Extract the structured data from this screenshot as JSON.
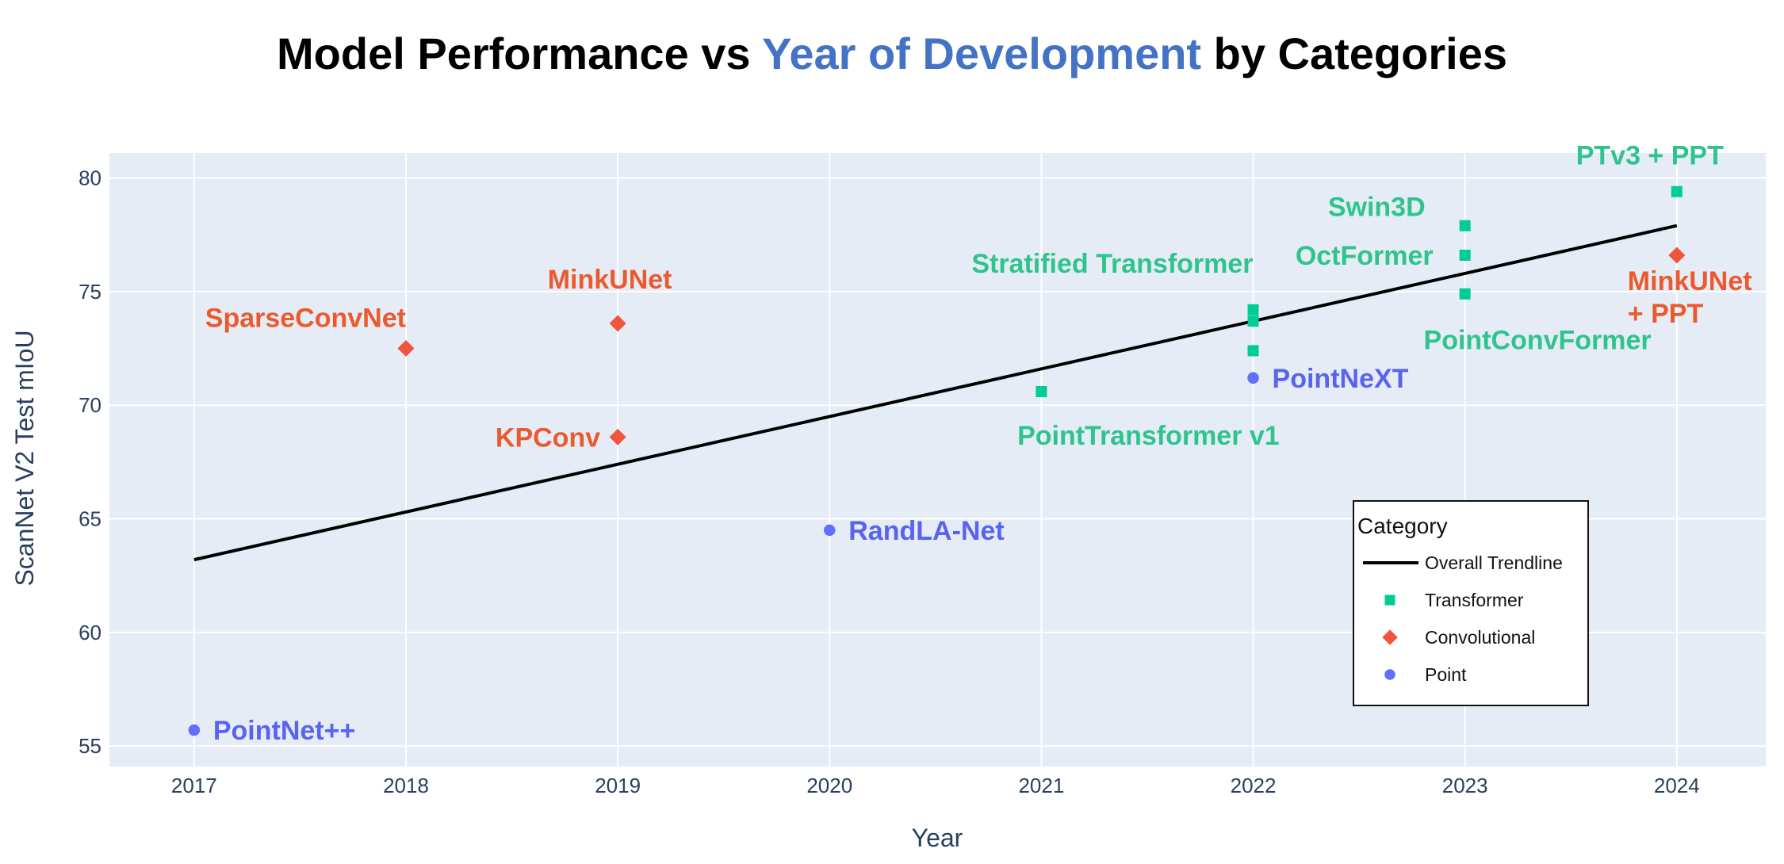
{
  "chart_data": {
    "type": "scatter",
    "title_parts": [
      {
        "text": "Model Performance vs ",
        "color": "#000000"
      },
      {
        "text": "Year of Development",
        "color": "#4472c4"
      },
      {
        "text": " by Categories",
        "color": "#000000"
      }
    ],
    "xlabel": "Year",
    "ylabel": "ScanNet V2 Test mIoU",
    "xlim": [
      2016.6,
      2024.42
    ],
    "ylim": [
      54.1,
      81.1
    ],
    "x_ticks": [
      2017,
      2018,
      2019,
      2020,
      2021,
      2022,
      2023,
      2024
    ],
    "y_ticks": [
      55,
      60,
      65,
      70,
      75,
      80
    ],
    "grid": true,
    "plot_background": "#e5ecf6",
    "legend": {
      "title": "Category",
      "position": "bottom-right",
      "entries": [
        {
          "label": "Overall Trendline",
          "symbol": "line",
          "color": "#000000"
        },
        {
          "label": "Transformer",
          "symbol": "square",
          "color": "#00cc96"
        },
        {
          "label": "Convolutional",
          "symbol": "diamond",
          "color": "#ef553b"
        },
        {
          "label": "Point",
          "symbol": "circle",
          "color": "#636efa"
        }
      ]
    },
    "trendline": {
      "name": "Overall Trendline",
      "x": [
        2017,
        2024
      ],
      "y": [
        63.2,
        77.9
      ],
      "color": "#000000"
    },
    "series": [
      {
        "name": "Transformer",
        "symbol": "square",
        "color": "#00cc96",
        "label_color": "#2fc48d",
        "points": [
          {
            "x": 2021,
            "y": 70.6
          },
          {
            "x": 2022,
            "y": 74.2
          },
          {
            "x": 2022,
            "y": 73.7
          },
          {
            "x": 2022,
            "y": 72.4
          },
          {
            "x": 2023,
            "y": 77.9
          },
          {
            "x": 2023,
            "y": 76.6
          },
          {
            "x": 2023,
            "y": 74.9
          },
          {
            "x": 2024,
            "y": 79.4
          }
        ]
      },
      {
        "name": "Convolutional",
        "symbol": "diamond",
        "color": "#ef553b",
        "label_color": "#ea5a2e",
        "points": [
          {
            "x": 2018,
            "y": 72.5
          },
          {
            "x": 2019,
            "y": 73.6
          },
          {
            "x": 2019,
            "y": 68.6
          },
          {
            "x": 2024,
            "y": 76.6
          }
        ]
      },
      {
        "name": "Point",
        "symbol": "circle",
        "color": "#636efa",
        "label_color": "#5a63f0",
        "points": [
          {
            "x": 2017,
            "y": 55.7
          },
          {
            "x": 2020,
            "y": 64.5
          },
          {
            "x": 2022,
            "y": 71.2
          }
        ]
      }
    ],
    "annotations": [
      {
        "text": "PointNet++",
        "x": 2017,
        "y": 55.7,
        "series": "Point",
        "anchor": "right"
      },
      {
        "text": "RandLA-Net",
        "x": 2020,
        "y": 64.5,
        "series": "Point",
        "anchor": "right"
      },
      {
        "text": "PointNeXT",
        "x": 2022,
        "y": 71.2,
        "series": "Point",
        "anchor": "right"
      },
      {
        "text": "SparseConvNet",
        "x": 2018,
        "y": 72.5,
        "series": "Convolutional",
        "anchor": "above-left"
      },
      {
        "text": "MinkUNet",
        "x": 2019,
        "y": 73.6,
        "series": "Convolutional",
        "anchor": "above"
      },
      {
        "text": "KPConv",
        "x": 2019,
        "y": 68.6,
        "series": "Convolutional",
        "anchor": "left"
      },
      {
        "text": "MinkUNet",
        "x": 2024,
        "y": 76.6,
        "series": "Convolutional",
        "anchor": "below-right-1"
      },
      {
        "text": "+ PPT",
        "x": 2024,
        "y": 76.6,
        "series": "Convolutional",
        "anchor": "below-right-2"
      },
      {
        "text": "PointTransformer v1",
        "x": 2021,
        "y": 70.6,
        "series": "Transformer",
        "anchor": "below"
      },
      {
        "text": "Stratified Transformer",
        "x": 2022,
        "y": 74.2,
        "series": "Transformer",
        "anchor": "above-left"
      },
      {
        "text": "Swin3D",
        "x": 2023,
        "y": 77.9,
        "series": "Transformer",
        "anchor": "above-left"
      },
      {
        "text": "OctFormer",
        "x": 2023,
        "y": 76.6,
        "series": "Transformer",
        "anchor": "left"
      },
      {
        "text": "PointConvFormer",
        "x": 2023,
        "y": 74.9,
        "series": "Transformer",
        "anchor": "below-right"
      },
      {
        "text": "PTv3 + PPT",
        "x": 2024,
        "y": 79.4,
        "series": "Transformer",
        "anchor": "above-left"
      }
    ]
  }
}
